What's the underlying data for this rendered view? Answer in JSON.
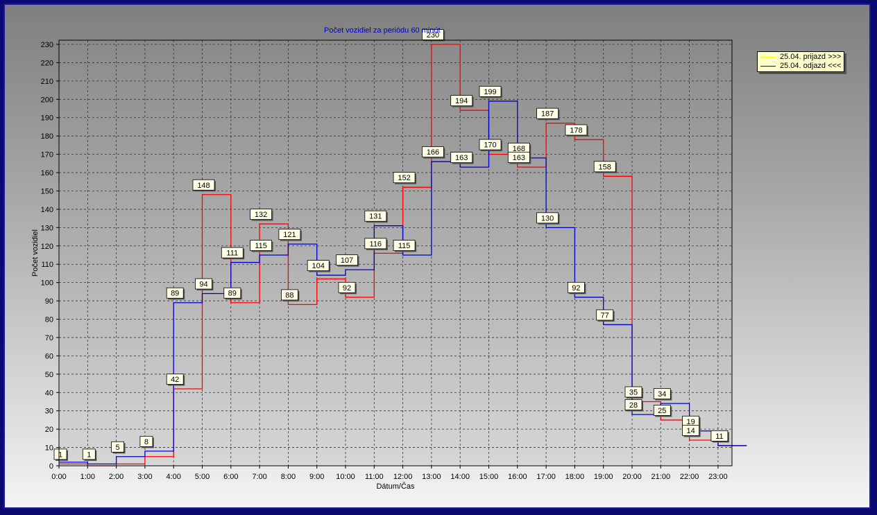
{
  "chart_data": {
    "type": "line",
    "step": true,
    "title": "Počet vozidiel za periódu 60 minút",
    "xlabel": "Dátum/Čas",
    "ylabel": "Počet vozidiel",
    "categories": [
      "0:00",
      "1:00",
      "2:00",
      "3:00",
      "4:00",
      "5:00",
      "6:00",
      "7:00",
      "8:00",
      "9:00",
      "10:00",
      "11:00",
      "12:00",
      "13:00",
      "14:00",
      "15:00",
      "16:00",
      "17:00",
      "18:00",
      "19:00",
      "20:00",
      "21:00",
      "22:00",
      "23:00"
    ],
    "ylim": [
      0,
      230
    ],
    "yticks": [
      0,
      10,
      20,
      30,
      40,
      50,
      60,
      70,
      80,
      90,
      100,
      110,
      120,
      130,
      140,
      150,
      160,
      170,
      180,
      190,
      200,
      210,
      220,
      230
    ],
    "grid": true,
    "legend_position": "top-right",
    "series": [
      {
        "name": "25.04.  prijazd >>>",
        "color": "#ff0000",
        "legend_color": "#ffff00",
        "values": [
          1,
          0,
          1,
          5,
          42,
          148,
          89,
          132,
          88,
          102,
          92,
          116,
          152,
          230,
          194,
          170,
          163,
          187,
          178,
          158,
          35,
          25,
          14,
          11
        ]
      },
      {
        "name": "25.04.  odjazd <<<",
        "color": "#0000cc",
        "legend_color": "#0000cc",
        "values": [
          2,
          1,
          5,
          8,
          89,
          94,
          111,
          115,
          121,
          104,
          107,
          131,
          115,
          166,
          163,
          199,
          168,
          130,
          92,
          77,
          28,
          34,
          19,
          11
        ]
      }
    ],
    "data_labels": [
      {
        "x": "0:00",
        "value": "1"
      },
      {
        "x": "1:00",
        "value": "1"
      },
      {
        "x": "2:00",
        "value": "5"
      },
      {
        "x": "3:00",
        "value": "8"
      },
      {
        "x": "4:00",
        "value": "89"
      },
      {
        "x": "4:00",
        "value": "42"
      },
      {
        "x": "5:00",
        "value": "148"
      },
      {
        "x": "5:00",
        "value": "94"
      },
      {
        "x": "6:00",
        "value": "111"
      },
      {
        "x": "6:00",
        "value": "89"
      },
      {
        "x": "7:00",
        "value": "132"
      },
      {
        "x": "7:00",
        "value": "115"
      },
      {
        "x": "8:00",
        "value": "121"
      },
      {
        "x": "8:00",
        "value": "88"
      },
      {
        "x": "9:00",
        "value": "104"
      },
      {
        "x": "10:00",
        "value": "107"
      },
      {
        "x": "10:00",
        "value": "92"
      },
      {
        "x": "11:00",
        "value": "131"
      },
      {
        "x": "11:00",
        "value": "116"
      },
      {
        "x": "12:00",
        "value": "152"
      },
      {
        "x": "12:00",
        "value": "115"
      },
      {
        "x": "13:00",
        "value": "230"
      },
      {
        "x": "13:00",
        "value": "166"
      },
      {
        "x": "14:00",
        "value": "194"
      },
      {
        "x": "14:00",
        "value": "163"
      },
      {
        "x": "15:00",
        "value": "199"
      },
      {
        "x": "15:00",
        "value": "170"
      },
      {
        "x": "16:00",
        "value": "168"
      },
      {
        "x": "16:00",
        "value": "163"
      },
      {
        "x": "17:00",
        "value": "187"
      },
      {
        "x": "17:00",
        "value": "130"
      },
      {
        "x": "18:00",
        "value": "178"
      },
      {
        "x": "18:00",
        "value": "92"
      },
      {
        "x": "19:00",
        "value": "158"
      },
      {
        "x": "19:00",
        "value": "77"
      },
      {
        "x": "20:00",
        "value": "35"
      },
      {
        "x": "20:00",
        "value": "28"
      },
      {
        "x": "21:00",
        "value": "34"
      },
      {
        "x": "21:00",
        "value": "25"
      },
      {
        "x": "22:00",
        "value": "19"
      },
      {
        "x": "22:00",
        "value": "14"
      },
      {
        "x": "23:00",
        "value": "11"
      }
    ]
  }
}
